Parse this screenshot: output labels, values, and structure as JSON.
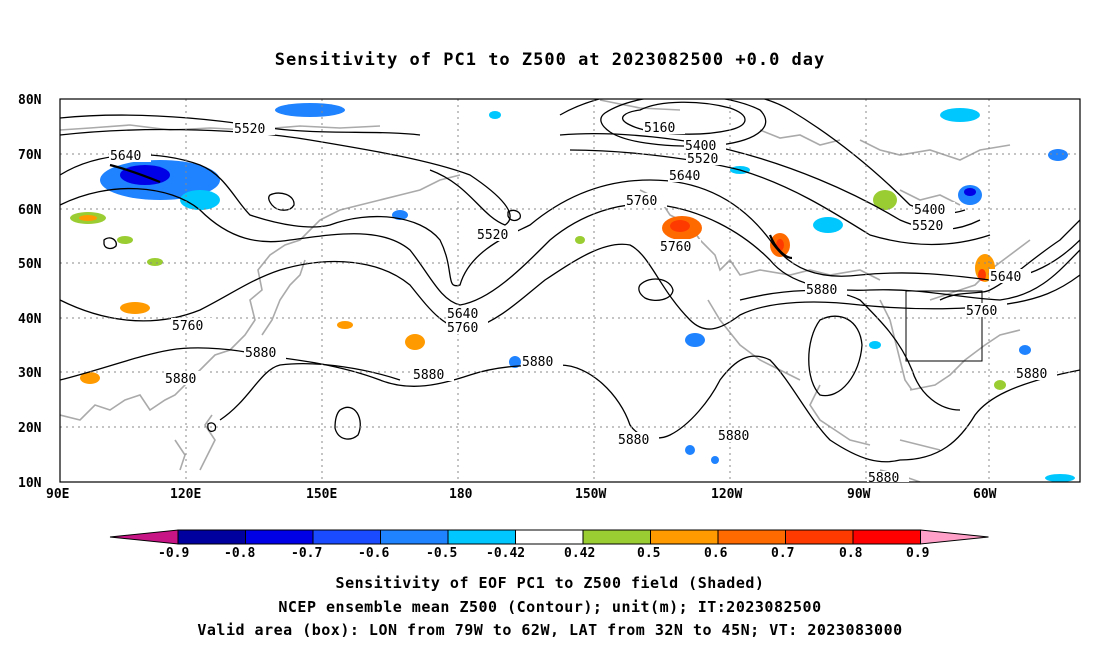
{
  "title": "Sensitivity of PC1 to Z500 at 2023082500 +0.0 day",
  "lat_labels": [
    "80N",
    "70N",
    "60N",
    "50N",
    "40N",
    "30N",
    "20N",
    "10N"
  ],
  "lon_labels": [
    "90E",
    "120E",
    "150E",
    "180",
    "150W",
    "120W",
    "90W",
    "60W"
  ],
  "contours": [
    {
      "label": "5520",
      "value": 5520
    },
    {
      "label": "5640",
      "value": 5640
    },
    {
      "label": "5160",
      "value": 5160
    },
    {
      "label": "5400",
      "value": 5400
    },
    {
      "label": "5520",
      "value": 5520
    },
    {
      "label": "5640",
      "value": 5640
    },
    {
      "label": "5760",
      "value": 5760
    },
    {
      "label": "5520",
      "value": 5520
    },
    {
      "label": "5760",
      "value": 5760
    },
    {
      "label": "5400",
      "value": 5400
    },
    {
      "label": "5520",
      "value": 5520
    },
    {
      "label": "5640",
      "value": 5640
    },
    {
      "label": "5760",
      "value": 5760
    },
    {
      "label": "5880",
      "value": 5880
    },
    {
      "label": "5640",
      "value": 5640
    },
    {
      "label": "5760",
      "value": 5760
    },
    {
      "label": "5760",
      "value": 5760
    },
    {
      "label": "5880",
      "value": 5880
    },
    {
      "label": "5880",
      "value": 5880
    },
    {
      "label": "5880",
      "value": 5880
    },
    {
      "label": "5880",
      "value": 5880
    },
    {
      "label": "5880",
      "value": 5880
    },
    {
      "label": "5880",
      "value": 5880
    },
    {
      "label": "5880",
      "value": 5880
    },
    {
      "label": "5880",
      "value": 5880
    }
  ],
  "colorbar": {
    "labels": [
      "-0.9",
      "-0.8",
      "-0.7",
      "-0.6",
      "-0.5",
      "-0.42",
      "0.42",
      "0.5",
      "0.6",
      "0.7",
      "0.8",
      "0.9"
    ],
    "colors": [
      "#00009e",
      "#0000e6",
      "#1a4bff",
      "#1f82ff",
      "#00c8ff",
      "#ffffff",
      "#9acd32",
      "#ff9a00",
      "#ff6a00",
      "#ff3a00",
      "#ff0000"
    ],
    "low_end_color": "#c71585",
    "high_end_color": "#ffa0c8"
  },
  "valid_box": {
    "lon_w": 79,
    "lon_e": 62,
    "lat_s": 32,
    "lat_n": 45
  },
  "captions": [
    "Sensitivity of EOF PC1 to Z500 field (Shaded)",
    "NCEP ensemble mean Z500 (Contour); unit(m); IT:2023082500",
    "Valid area (box): LON from 79W to 62W, LAT from 32N to 45N; VT: 2023083000"
  ],
  "shading_colors": {
    "blue": "#1f82ff",
    "cyan": "#00c8ff",
    "darkblue": "#0000e6",
    "green": "#9acd32",
    "orange": "#ff9a00",
    "red": "#ff3a00"
  }
}
